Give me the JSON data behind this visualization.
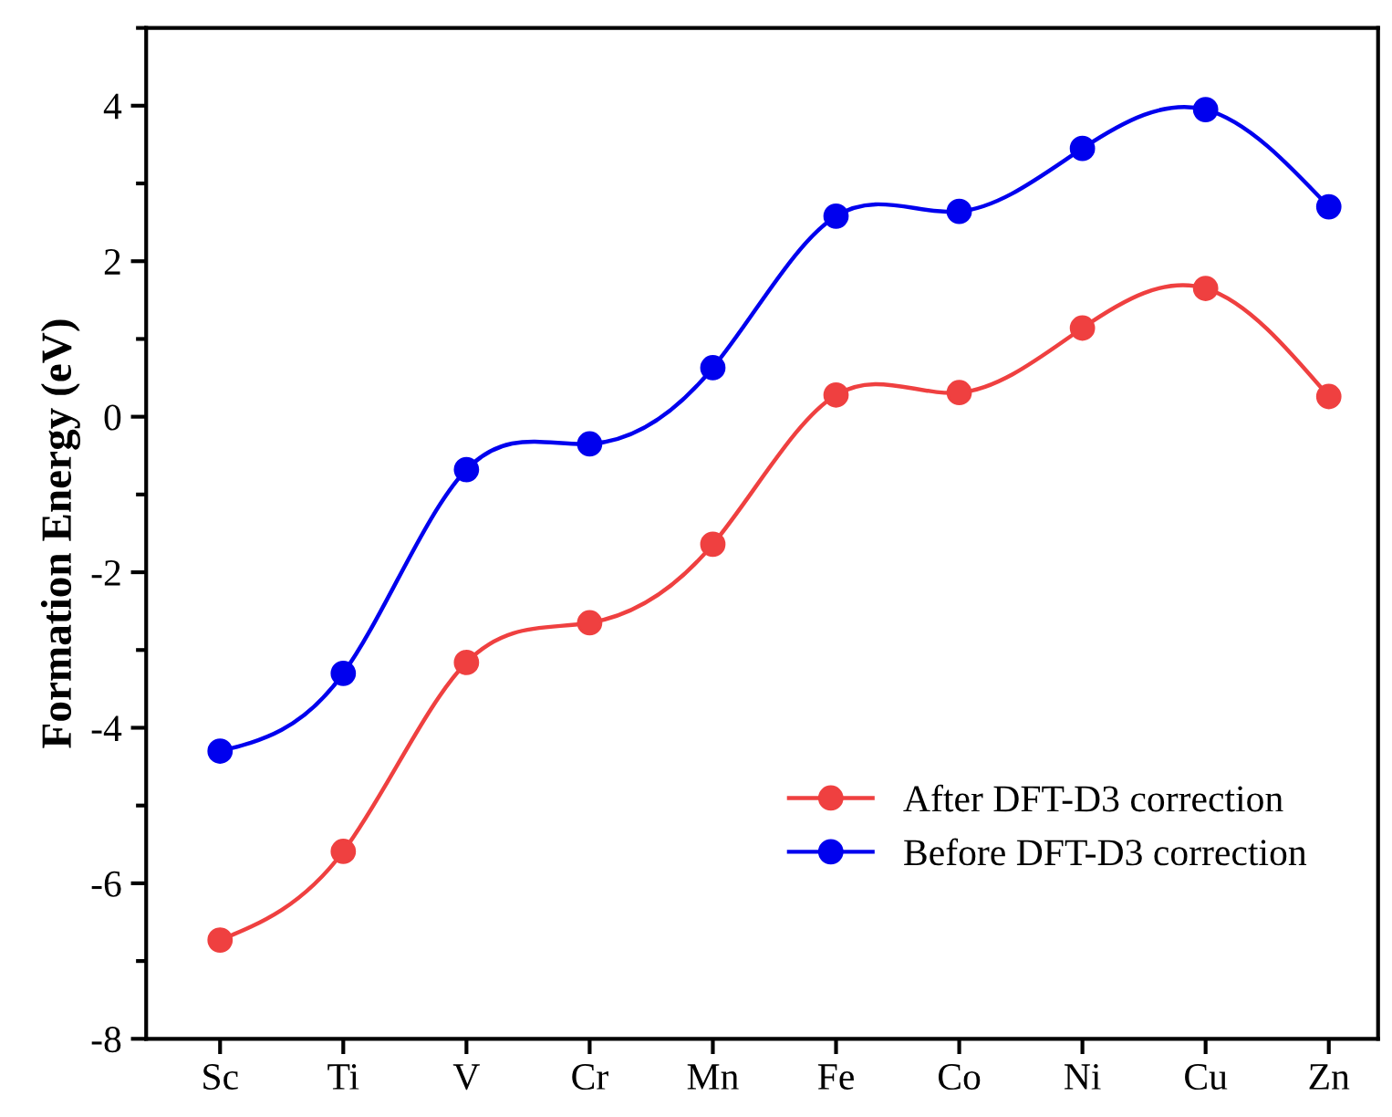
{
  "chart_data": {
    "type": "line",
    "ylabel": "Formation Energy (eV)",
    "categories": [
      "Sc",
      "Ti",
      "V",
      "Cr",
      "Mn",
      "Fe",
      "Co",
      "Ni",
      "Cu",
      "Zn"
    ],
    "series": [
      {
        "name": "After DFT-D3 correction",
        "color": "#ef4040",
        "values": [
          -6.73,
          -5.59,
          -3.16,
          -2.65,
          -1.64,
          0.28,
          0.31,
          1.14,
          1.65,
          0.26
        ]
      },
      {
        "name": "Before DFT-D3 correction",
        "color": "#0000ee",
        "values": [
          -4.3,
          -3.3,
          -0.68,
          -0.35,
          0.63,
          2.58,
          2.64,
          3.45,
          3.95,
          2.7
        ]
      }
    ],
    "ylim": [
      -8,
      5
    ],
    "yticks": [
      -8,
      -6,
      -4,
      -2,
      0,
      2,
      4
    ],
    "marker": "circle",
    "line_style": "solid",
    "legend": "bottom right",
    "grid": false
  }
}
